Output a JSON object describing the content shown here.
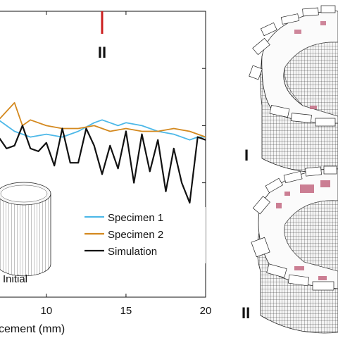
{
  "chart_data": {
    "type": "line",
    "xlabel": "cement (mm)",
    "xlim": [
      7.0,
      20
    ],
    "ylim": [
      0,
      1
    ],
    "x_ticks": [
      10,
      15,
      20
    ],
    "grid": false,
    "legend_placement": "lower-right",
    "series": [
      {
        "name": "Specimen 1",
        "color": "#4db8e8",
        "x": [
          7.0,
          8.0,
          9.0,
          10.0,
          11.0,
          12.0,
          13.0,
          13.5,
          14.0,
          14.5,
          15.0,
          16.0,
          17.0,
          18.0,
          19.0,
          19.5,
          20.0
        ],
        "y": [
          0.62,
          0.58,
          0.56,
          0.57,
          0.56,
          0.58,
          0.61,
          0.62,
          0.61,
          0.6,
          0.61,
          0.6,
          0.58,
          0.57,
          0.55,
          0.56,
          0.56
        ]
      },
      {
        "name": "Specimen 2",
        "color": "#d4891f",
        "x": [
          7.0,
          7.5,
          8.0,
          8.5,
          9.0,
          10.0,
          11.0,
          12.0,
          13.0,
          14.0,
          15.0,
          16.0,
          17.0,
          18.0,
          19.0,
          20.0
        ],
        "y": [
          0.62,
          0.65,
          0.68,
          0.6,
          0.62,
          0.6,
          0.59,
          0.59,
          0.6,
          0.58,
          0.59,
          0.58,
          0.58,
          0.59,
          0.58,
          0.56
        ]
      },
      {
        "name": "Simulation",
        "color": "#111111",
        "x": [
          7.0,
          7.5,
          8.0,
          8.5,
          9.0,
          9.5,
          10.0,
          10.5,
          11.0,
          11.5,
          12.0,
          12.5,
          13.0,
          13.5,
          14.0,
          14.5,
          15.0,
          15.5,
          16.0,
          16.5,
          17.0,
          17.5,
          18.0,
          18.5,
          19.0,
          19.5,
          20.0
        ],
        "y": [
          0.56,
          0.52,
          0.53,
          0.6,
          0.52,
          0.51,
          0.54,
          0.46,
          0.59,
          0.47,
          0.47,
          0.59,
          0.53,
          0.43,
          0.53,
          0.45,
          0.58,
          0.4,
          0.57,
          0.44,
          0.55,
          0.37,
          0.52,
          0.4,
          0.33,
          0.56,
          0.55
        ]
      }
    ]
  },
  "markers": [
    {
      "label": "II",
      "x": 13.5,
      "color": "#cc1f1f"
    }
  ],
  "inset_label": "Initial",
  "panel_labels": [
    "I",
    "II"
  ],
  "colors": {
    "frame": "#111111",
    "damage": "#c0607a",
    "mesh": "#333333"
  }
}
